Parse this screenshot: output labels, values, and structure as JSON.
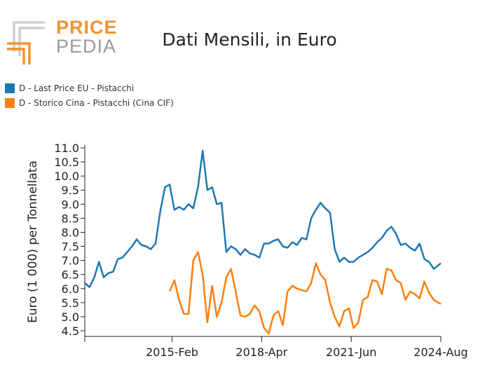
{
  "logo": {
    "word1": "PRICE",
    "word2": "PEDIA",
    "orange": "#f29432",
    "gray": "#9a9a9a"
  },
  "chart_data": {
    "type": "line",
    "title": "Dati Mensili, in Euro",
    "xlabel": "",
    "ylabel": "Euro (1 000) per Tonnellata",
    "ylim": [
      4.3,
      11.1
    ],
    "yticks": [
      "4.5",
      "5.0",
      "5.5",
      "6.0",
      "6.5",
      "7.0",
      "7.5",
      "8.0",
      "8.5",
      "9.0",
      "9.5",
      "10.0",
      "10.5",
      "11.0"
    ],
    "xlim": [
      "2012-01",
      "2024-08"
    ],
    "xticks": [
      {
        "date": "2012-01",
        "label": ""
      },
      {
        "date": "2015-02",
        "label": "2015-Feb"
      },
      {
        "date": "2018-04",
        "label": "2018-Apr"
      },
      {
        "date": "2021-06",
        "label": "2021-Jun"
      },
      {
        "date": "2024-08",
        "label": "2024-Aug"
      }
    ],
    "grid": false,
    "legend_position": "top-left",
    "series": [
      {
        "name": "D - Last Price EU - Pistacchi",
        "color": "#1f77b4",
        "x": [
          "2012-01",
          "2012-03",
          "2012-05",
          "2012-07",
          "2012-09",
          "2012-11",
          "2013-01",
          "2013-03",
          "2013-05",
          "2013-07",
          "2013-09",
          "2013-11",
          "2014-01",
          "2014-03",
          "2014-05",
          "2014-07",
          "2014-09",
          "2014-11",
          "2015-01",
          "2015-03",
          "2015-05",
          "2015-07",
          "2015-09",
          "2015-11",
          "2016-01",
          "2016-03",
          "2016-05",
          "2016-07",
          "2016-09",
          "2016-11",
          "2017-01",
          "2017-03",
          "2017-05",
          "2017-07",
          "2017-09",
          "2017-11",
          "2018-01",
          "2018-03",
          "2018-05",
          "2018-07",
          "2018-09",
          "2018-11",
          "2019-01",
          "2019-03",
          "2019-05",
          "2019-07",
          "2019-09",
          "2019-11",
          "2020-01",
          "2020-03",
          "2020-05",
          "2020-07",
          "2020-09",
          "2020-11",
          "2021-01",
          "2021-03",
          "2021-05",
          "2021-07",
          "2021-09",
          "2021-11",
          "2022-01",
          "2022-03",
          "2022-05",
          "2022-07",
          "2022-09",
          "2022-11",
          "2023-01",
          "2023-03",
          "2023-05",
          "2023-07",
          "2023-09",
          "2023-11",
          "2024-01",
          "2024-03",
          "2024-05",
          "2024-08"
        ],
        "y": [
          6.2,
          6.05,
          6.4,
          6.95,
          6.4,
          6.55,
          6.6,
          7.05,
          7.1,
          7.3,
          7.5,
          7.75,
          7.55,
          7.5,
          7.4,
          7.6,
          8.75,
          9.6,
          9.7,
          8.8,
          8.9,
          8.8,
          9.0,
          8.85,
          9.6,
          10.9,
          9.5,
          9.6,
          9.0,
          9.05,
          7.3,
          7.5,
          7.4,
          7.2,
          7.4,
          7.25,
          7.2,
          7.1,
          7.6,
          7.6,
          7.7,
          7.75,
          7.5,
          7.45,
          7.65,
          7.55,
          7.8,
          7.75,
          8.5,
          8.8,
          9.05,
          8.85,
          8.7,
          7.4,
          6.95,
          7.1,
          6.95,
          6.95,
          7.1,
          7.2,
          7.3,
          7.45,
          7.65,
          7.8,
          8.05,
          8.2,
          7.95,
          7.55,
          7.6,
          7.45,
          7.35,
          7.6,
          7.05,
          6.95,
          6.7,
          6.9
        ]
      },
      {
        "name": "D - Storico Cina - Pistacchi (Cina CIF)",
        "color": "#ff7f0e",
        "x": [
          "2015-01",
          "2015-03",
          "2015-05",
          "2015-07",
          "2015-09",
          "2015-11",
          "2016-01",
          "2016-03",
          "2016-05",
          "2016-07",
          "2016-09",
          "2016-11",
          "2017-01",
          "2017-03",
          "2017-05",
          "2017-07",
          "2017-09",
          "2017-11",
          "2018-01",
          "2018-03",
          "2018-05",
          "2018-07",
          "2018-09",
          "2018-11",
          "2019-01",
          "2019-03",
          "2019-05",
          "2019-07",
          "2019-09",
          "2019-11",
          "2020-01",
          "2020-03",
          "2020-05",
          "2020-07",
          "2020-09",
          "2020-11",
          "2021-01",
          "2021-03",
          "2021-05",
          "2021-07",
          "2021-09",
          "2021-11",
          "2022-01",
          "2022-03",
          "2022-05",
          "2022-07",
          "2022-09",
          "2022-11",
          "2023-01",
          "2023-03",
          "2023-05",
          "2023-07",
          "2023-09",
          "2023-11",
          "2024-01",
          "2024-03",
          "2024-05",
          "2024-08"
        ],
        "y": [
          5.9,
          6.3,
          5.6,
          5.1,
          5.1,
          7.0,
          7.3,
          6.5,
          4.8,
          6.1,
          5.0,
          5.5,
          6.4,
          6.7,
          5.9,
          5.05,
          5.0,
          5.1,
          5.4,
          5.2,
          4.6,
          4.4,
          5.05,
          5.2,
          4.7,
          5.9,
          6.1,
          6.0,
          5.95,
          5.9,
          6.2,
          6.9,
          6.5,
          6.3,
          5.5,
          5.0,
          4.65,
          5.2,
          5.3,
          4.6,
          4.8,
          5.6,
          5.7,
          6.3,
          6.25,
          5.8,
          6.7,
          6.65,
          6.3,
          6.2,
          5.6,
          5.9,
          5.8,
          5.65,
          6.25,
          5.85,
          5.6,
          5.45
        ]
      }
    ]
  }
}
